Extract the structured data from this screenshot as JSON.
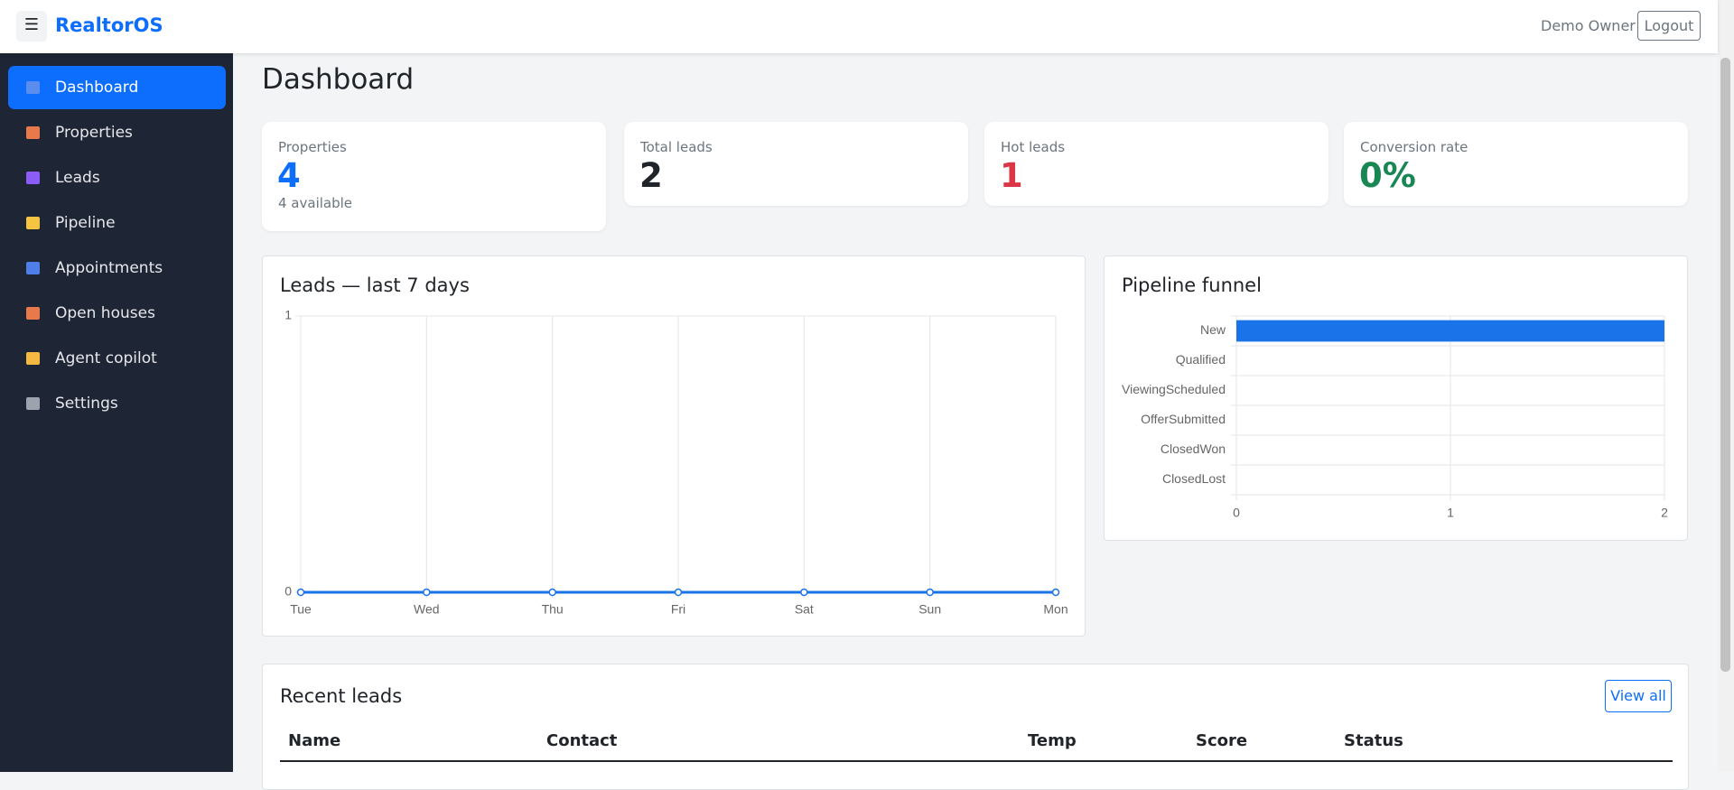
{
  "header": {
    "brand": "RealtorOS",
    "user": "Demo Owner",
    "logout": "Logout"
  },
  "nav": [
    "Dashboard",
    "Properties",
    "Leads",
    "Pipeline",
    "Appointments",
    "Open houses",
    "Agent copilot",
    "Settings"
  ],
  "page": {
    "title": "Dashboard"
  },
  "stats": [
    {
      "label": "Properties",
      "value": 4,
      "sub": "4 available"
    },
    {
      "label": "Total leads",
      "value": 2
    },
    {
      "label": "Hot leads",
      "value": 1
    },
    {
      "label": "Conversion rate",
      "value": "0%"
    }
  ],
  "chart_data": [
    {
      "type": "line",
      "title": "Leads — last 7 days",
      "categories": [
        "Tue",
        "Wed",
        "Thu",
        "Fri",
        "Sat",
        "Sun",
        "Mon"
      ],
      "values": [
        0,
        0,
        0,
        0,
        0,
        0,
        0
      ],
      "color": "#1a73e8",
      "ylim": [
        0,
        1
      ],
      "yticks": [
        0,
        1
      ],
      "grid": true
    },
    {
      "type": "hbar",
      "title": "Pipeline funnel",
      "categories": [
        "New",
        "Qualified",
        "ViewingScheduled",
        "OfferSubmitted",
        "ClosedWon",
        "ClosedLost"
      ],
      "values": [
        2,
        0,
        0,
        0,
        0,
        0
      ],
      "color": "#1a73e8",
      "xlim": [
        0,
        2
      ],
      "xticks": [
        0,
        1,
        2
      ],
      "grid": true
    }
  ],
  "recent_leads": {
    "title": "Recent leads",
    "view_all": "View all",
    "columns": [
      "Name",
      "Contact",
      "Temp",
      "Score",
      "Status"
    ]
  }
}
